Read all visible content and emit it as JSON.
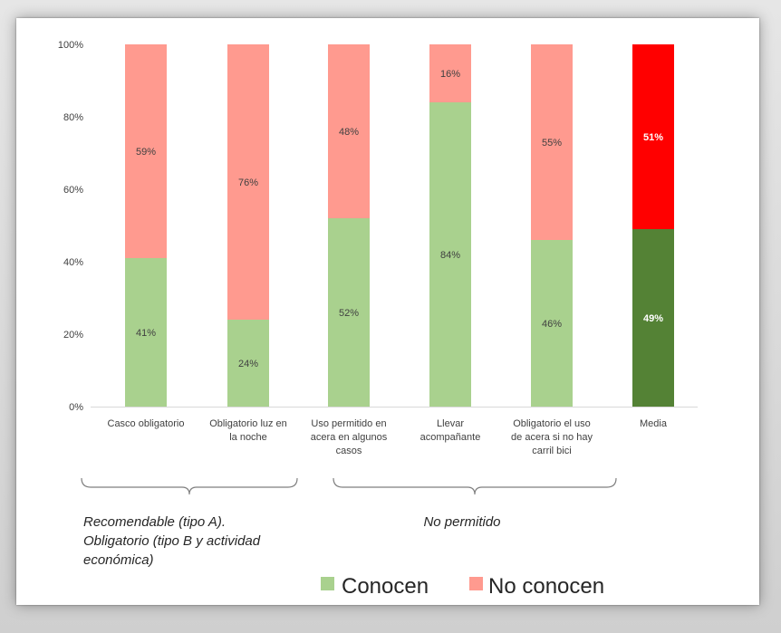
{
  "chart_data": {
    "type": "bar",
    "stacked": true,
    "percent": true,
    "categories": [
      "Casco obligatorio",
      "Obligatorio luz en la noche",
      "Uso permitido en acera en algunos casos",
      "Llevar acompañante",
      "Obligatorio el uso de acera si no hay carril bici",
      "Media"
    ],
    "category_lines": [
      [
        "Casco obligatorio"
      ],
      [
        "Obligatorio luz en",
        "la noche"
      ],
      [
        "Uso permitido en",
        "acera en algunos",
        "casos"
      ],
      [
        "Llevar",
        "acompañante"
      ],
      [
        "Obligatorio el uso",
        "de acera si no hay",
        "carril bici"
      ],
      [
        "Media"
      ]
    ],
    "series": [
      {
        "name": "Conocen",
        "values": [
          41,
          24,
          52,
          84,
          46,
          49
        ],
        "color": "#a9d18e",
        "highlight_color": "#548235"
      },
      {
        "name": "No conocen",
        "values": [
          59,
          76,
          48,
          16,
          55,
          51
        ],
        "color": "#ff9a8f",
        "highlight_color": "#ff0000"
      }
    ],
    "highlight_category": "Media",
    "value_labels": true,
    "ylim": [
      0,
      100
    ],
    "yticks": [
      "0%",
      "20%",
      "40%",
      "60%",
      "80%",
      "100%"
    ],
    "legend_position": "bottom-right",
    "group_annotations": [
      {
        "lines": [
          "Recomendable (tipo A).",
          "Obligatorio (tipo B y actividad",
          "económica)"
        ],
        "spans": [
          "Casco obligatorio",
          "Obligatorio luz en la noche"
        ]
      },
      {
        "lines": [
          "No permitido"
        ],
        "spans": [
          "Uso permitido en acera en algunos casos",
          "Llevar acompañante",
          "Obligatorio el uso de acera si no hay carril bici"
        ]
      }
    ]
  }
}
